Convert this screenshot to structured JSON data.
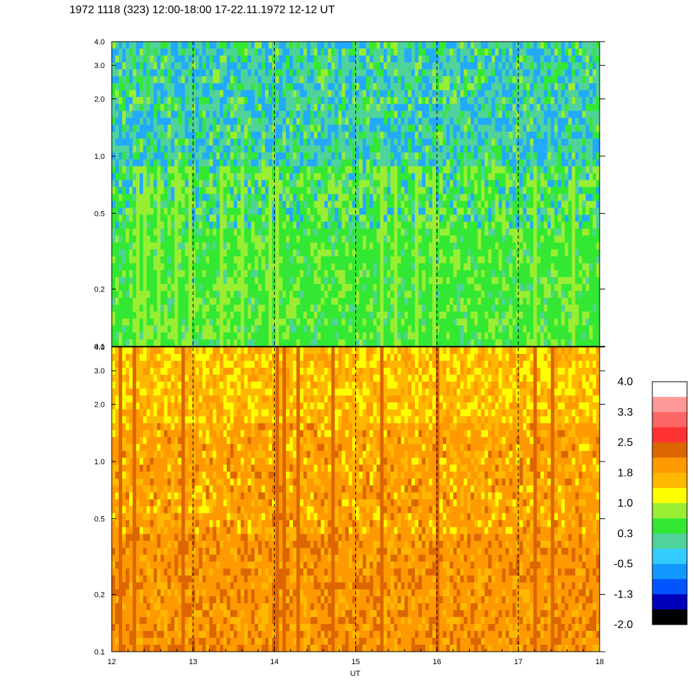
{
  "title": "1972 1118 (323) 12:00-18:00 17-22.11.1972  12-12 UT",
  "chart_data": {
    "type": "heatmap",
    "xlabel": "UT",
    "x_ticks": [
      "12",
      "13",
      "14",
      "15",
      "16",
      "17",
      "18"
    ],
    "xlim": [
      12,
      18
    ],
    "x_scale": "linear",
    "y_scale": "log",
    "grid_x": "dashed vertical lines at each hour",
    "panels": [
      {
        "name": "upper",
        "ylim": [
          0.1,
          4.0
        ],
        "y_ticks": [
          "0.1",
          "0.2",
          "0.5",
          "1.0",
          "2.0",
          "3.0",
          "4.0"
        ],
        "dominant_colors": [
          "#33e833",
          "#4fd39a",
          "#22aaff",
          "#99ee33"
        ]
      },
      {
        "name": "lower",
        "ylim": [
          0.1,
          4.0
        ],
        "y_ticks": [
          "0.1",
          "0.2",
          "0.5",
          "1.0",
          "2.0",
          "3.0",
          "4.0"
        ],
        "dominant_colors": [
          "#ff9900",
          "#ffb800",
          "#dd6600",
          "#ffff00"
        ]
      }
    ],
    "colorbar": {
      "labels": [
        "4.0",
        "3.3",
        "2.5",
        "1.8",
        "1.0",
        "0.3",
        "-0.5",
        "-1.3",
        "-2.0"
      ],
      "colors": [
        "#ffffff",
        "#ff9999",
        "#ff6666",
        "#ff3333",
        "#dd6600",
        "#ff9900",
        "#ffb800",
        "#ffff00",
        "#99ee33",
        "#33e833",
        "#4fd39a",
        "#33ccff",
        "#1199ff",
        "#0055ff",
        "#0000bb",
        "#000000"
      ]
    }
  }
}
